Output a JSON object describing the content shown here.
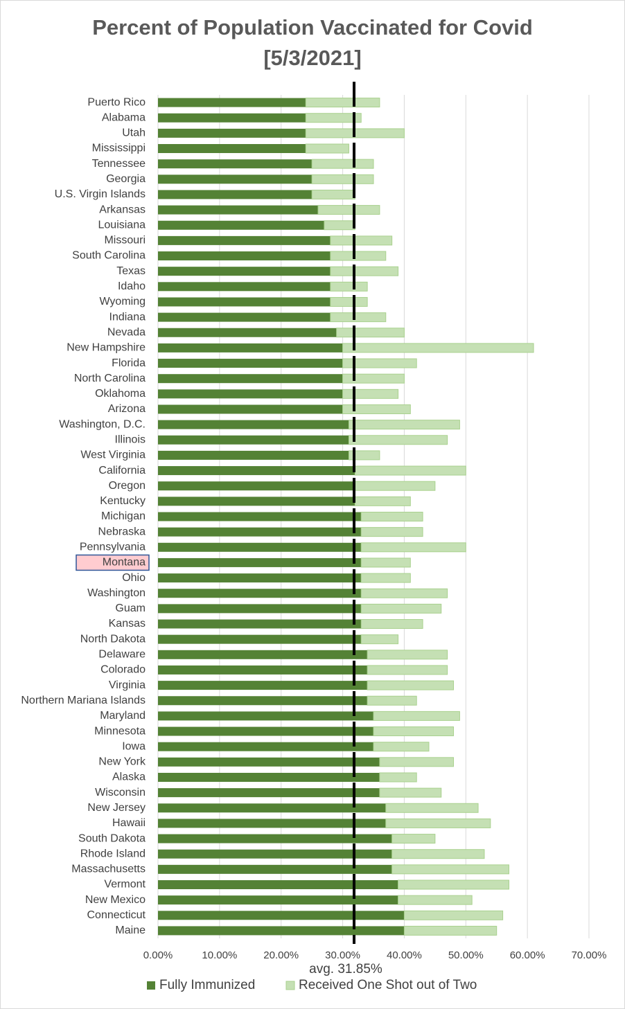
{
  "chart_data": {
    "type": "stacked_barh",
    "title": "Percent of Population Vaccinated for Covid",
    "subtitle": "[5/3/2021]",
    "categories": [
      "Puerto Rico",
      "Alabama",
      "Utah",
      "Mississippi",
      "Tennessee",
      "Georgia",
      "U.S. Virgin Islands",
      "Arkansas",
      "Louisiana",
      "Missouri",
      "South Carolina",
      "Texas",
      "Idaho",
      "Wyoming",
      "Indiana",
      "Nevada",
      "New Hampshire",
      "Florida",
      "North Carolina",
      "Oklahoma",
      "Arizona",
      "Washington, D.C.",
      "Illinois",
      "West Virginia",
      "California",
      "Oregon",
      "Kentucky",
      "Michigan",
      "Nebraska",
      "Pennsylvania",
      "Montana",
      "Ohio",
      "Washington",
      "Guam",
      "Kansas",
      "North Dakota",
      "Delaware",
      "Colorado",
      "Virginia",
      "Northern Mariana Islands",
      "Maryland",
      "Minnesota",
      "Iowa",
      "New York",
      "Alaska",
      "Wisconsin",
      "New Jersey",
      "Hawaii",
      "South Dakota",
      "Rhode Island",
      "Massachusetts",
      "Vermont",
      "New Mexico",
      "Connecticut",
      "Maine"
    ],
    "series": [
      {
        "name": "Fully Immunized",
        "color": "#548235",
        "values": [
          24,
          24,
          24,
          24,
          25,
          25,
          25,
          26,
          27,
          28,
          28,
          28,
          28,
          28,
          28,
          29,
          30,
          30,
          30,
          30,
          30,
          31,
          31,
          31,
          32,
          32,
          32,
          33,
          33,
          33,
          33,
          33,
          33,
          33,
          33,
          33,
          34,
          34,
          34,
          34,
          35,
          35,
          35,
          36,
          36,
          36,
          37,
          37,
          38,
          38,
          38,
          39,
          39,
          40,
          40
        ]
      },
      {
        "name": "Received One Shot out of Two",
        "color": "#c5e0b4",
        "values": [
          12,
          9,
          16,
          7,
          10,
          10,
          7,
          10,
          5,
          10,
          9,
          11,
          6,
          6,
          9,
          11,
          31,
          12,
          10,
          9,
          11,
          18,
          16,
          5,
          18,
          13,
          9,
          10,
          10,
          17,
          8,
          8,
          14,
          13,
          10,
          6,
          13,
          13,
          14,
          8,
          14,
          13,
          9,
          12,
          6,
          10,
          15,
          17,
          7,
          15,
          19,
          18,
          12,
          16,
          15
        ]
      }
    ],
    "xlim": [
      0,
      70
    ],
    "xticks": [
      {
        "value": 0,
        "label": "0.00%"
      },
      {
        "value": 10,
        "label": "10.00%"
      },
      {
        "value": 20,
        "label": "20.00%"
      },
      {
        "value": 30,
        "label": "30.00%"
      },
      {
        "value": 40,
        "label": "40.00%"
      },
      {
        "value": 50,
        "label": "50.00%"
      },
      {
        "value": 60,
        "label": "60.00%"
      },
      {
        "value": 70,
        "label": "70.00%"
      }
    ],
    "grid": true,
    "average": {
      "value": 31.85,
      "label": "avg. 31.85%"
    },
    "highlight": "Montana",
    "legend": "bottom"
  }
}
